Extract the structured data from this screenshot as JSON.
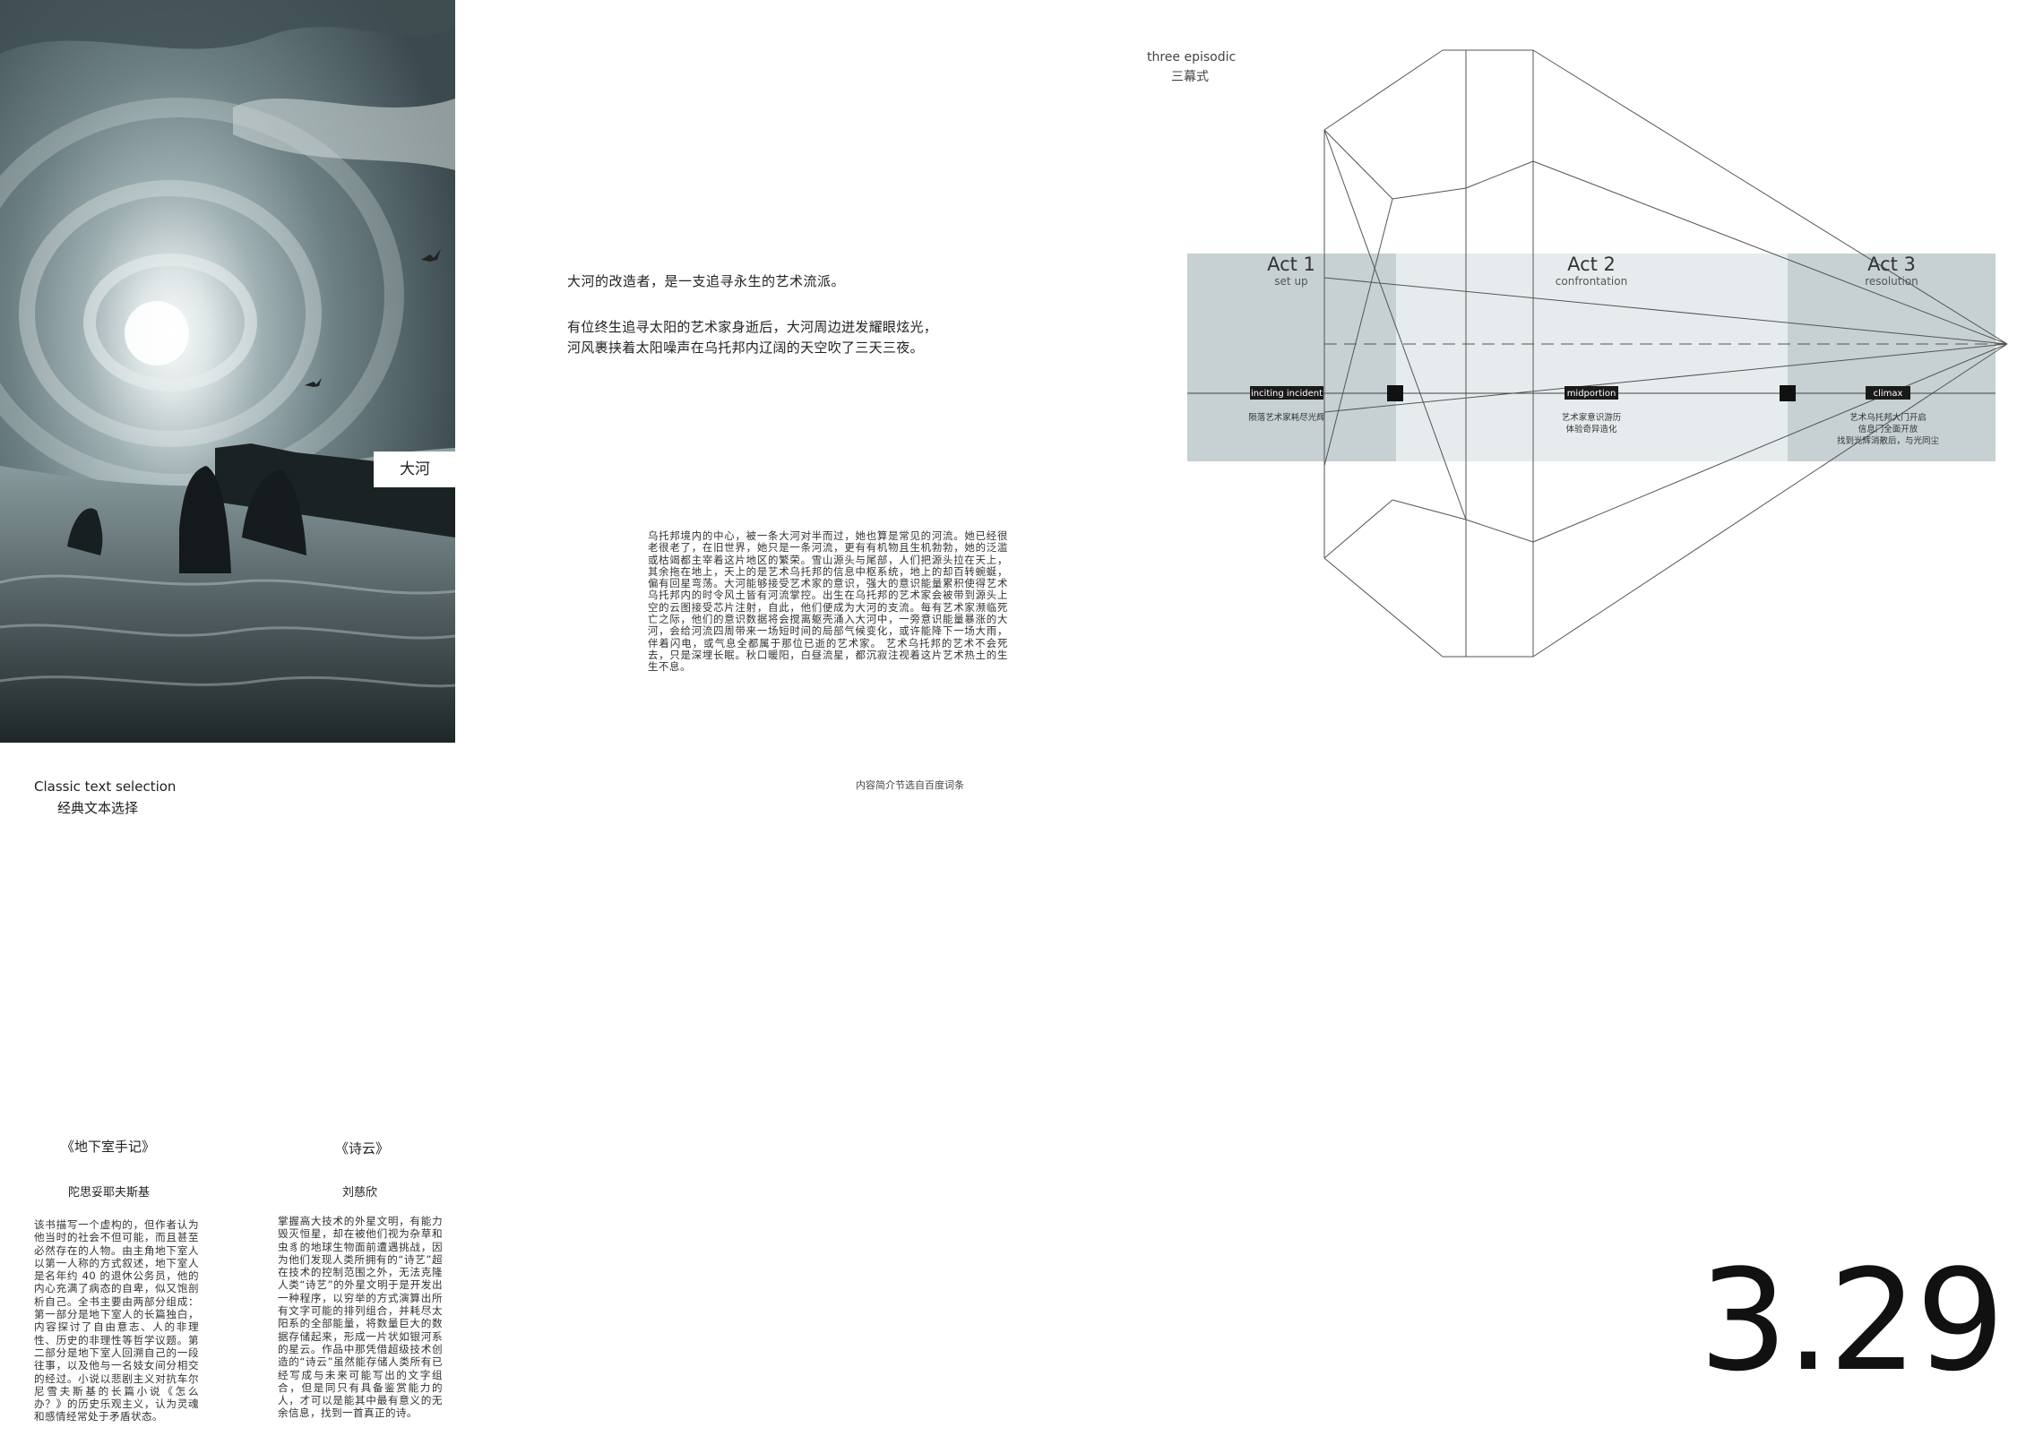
{
  "artwork": {
    "label": "大河"
  },
  "intro": {
    "tagline": "大河的改造者，是一支追寻永生的艺术流派。",
    "line1": "有位终生追寻太阳的艺术家身逝后，大河周边迸发耀眼炫光，",
    "line2": "河风裹挟着太阳噪声在乌托邦内辽阔的天空吹了三天三夜。",
    "synopsis": "乌托邦境内的中心，被一条大河对半而过，她也算是常见的河流。她已经很老很老了，在旧世界，她只是一条河流，更有有机物且生机勃勃，她的泛滥或枯竭都主宰着这片地区的繁荣。雪山源头与尾部，人们把源头拉在天上，其余拖在地上，天上的是艺术乌托邦的信息中枢系统，地上的却百转蜿蜒，偏有回星弯荡。大河能够接受艺术家的意识，强大的意识能量累积使得艺术乌托邦内的时令风土皆有河流掌控。出生在乌托邦的艺术家会被带到源头上空的云图接受芯片注射，自此，他们便成为大河的支流。每有艺术家濒临死亡之际，他们的意识数据将会搅离躯壳涌入大河中，一旁意识能量暴涨的大河，会给河流四周带来一场短时间的局部气候变化，或许能降下一场大雨，伴着闪电，或气息全都属于那位已逝的艺术家。 艺术乌托邦的艺术不会死去，只是深埋长眠。秋口暖阳，白昼流星，都沉寂注视着这片艺术热土的生生不息。",
    "source_note": "内容简介节选自百度词条"
  },
  "diagram": {
    "label_en": "three episodic",
    "label_zh": "三幕式",
    "acts": [
      {
        "title": "Act 1",
        "subtitle": "set up"
      },
      {
        "title": "Act 2",
        "subtitle": "confrontation"
      },
      {
        "title": "Act 3",
        "subtitle": "resolution"
      }
    ],
    "plot_points": [
      {
        "tag": "inciting incident",
        "desc": [
          "陨落艺术家耗尽光辉"
        ]
      },
      {
        "tag": "midportion",
        "desc": [
          "艺术家意识游历",
          "体验奇异造化"
        ]
      },
      {
        "tag": "climax",
        "desc": [
          "艺术乌托邦大门开启",
          "信息门全面开放",
          "找到光辉消散后，与光同尘"
        ]
      }
    ]
  },
  "selection": {
    "title_en": "Classic text selection",
    "title_zh": "经典文本选择"
  },
  "books": [
    {
      "title": "《地下室手记》",
      "author": "陀思妥耶夫斯基",
      "summary": "该书描写一个虚构的，但作者认为他当时的社会不但可能，而且甚至必然存在的人物。由主角地下室人以第一人称的方式叙述，地下室人是名年约 40 的退休公务员，他的内心充满了病态的自卑，似又饱剖析自己。全书主要由两部分组成：第一部分是地下室人的长篇独白，内容探讨了自由意志、人的非理性、历史的非理性等哲学议题。第二部分是地下室人回溯自己的一段往事，以及他与一名妓女间分相交的经过。小说以悲剧主义对抗车尔尼雪夫斯基的长篇小说《怎么办？》的历史乐观主义，认为灵魂和感情经常处于矛盾状态。"
    },
    {
      "title": "《诗云》",
      "author": "刘慈欣",
      "summary": "掌握高大技术的外星文明，有能力毁灭恒星，却在被他们视为杂草和虫豸的地球生物面前遭遇挑战，因为他们发现人类所拥有的“诗艺”超在技术的控制范围之外，无法克隆人类“诗艺”的外星文明于是开发出一种程序，以穷举的方式演算出所有文字可能的排列组合，并耗尽太阳系的全部能量，将数量巨大的数据存储起来，形成一片状如银河系的星云。作品中那凭借超级技术创造的“诗云”虽然能存储人类所有已经写成与未来可能写出的文字组合，但是同只有具备鉴赏能力的人，才可以是能其中最有意义的无余信息，找到一首真正的诗。"
    }
  ],
  "date": "3.29"
}
